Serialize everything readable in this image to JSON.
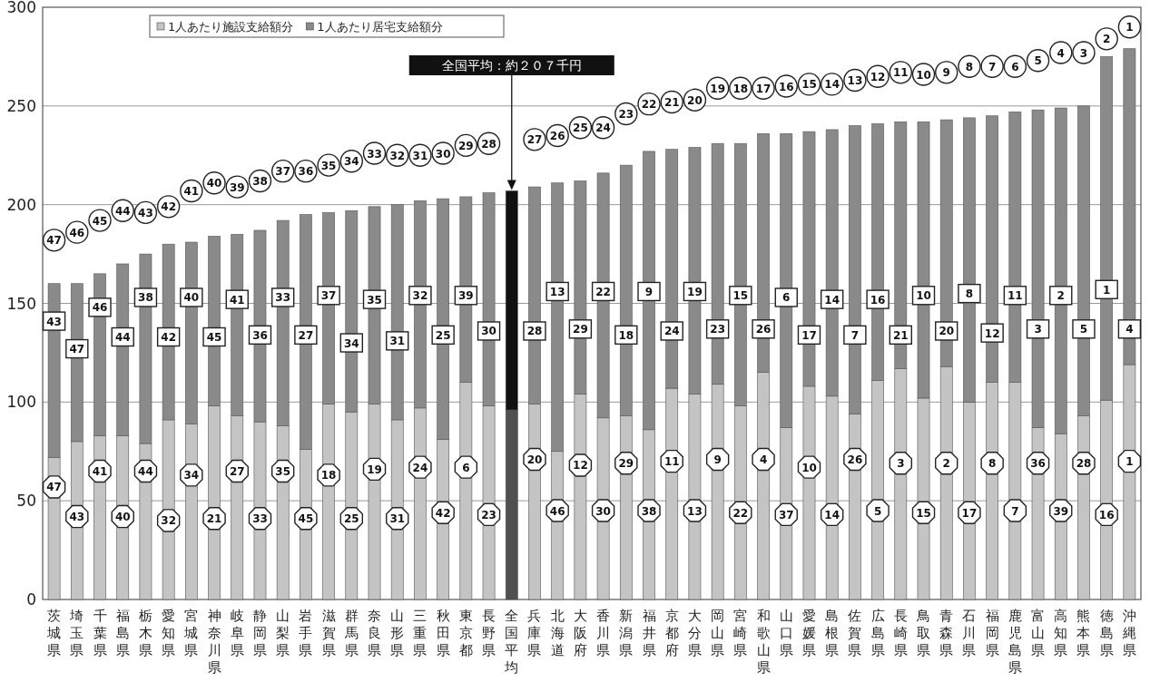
{
  "chart_data": {
    "type": "bar",
    "stacked": true,
    "categories": [
      "茨城県",
      "埼玉県",
      "千葉県",
      "福島県",
      "栃木県",
      "愛知県",
      "宮城県",
      "神奈川県",
      "岐阜県",
      "静岡県",
      "山梨県",
      "岩手県",
      "滋賀県",
      "群馬県",
      "奈良県",
      "山形県",
      "三重県",
      "秋田県",
      "東京都",
      "長野県",
      "全国平均",
      "兵庫県",
      "北海道",
      "大阪府",
      "香川県",
      "新潟県",
      "福井県",
      "京都府",
      "大分県",
      "岡山県",
      "宮崎県",
      "和歌山県",
      "山口県",
      "愛媛県",
      "島根県",
      "佐賀県",
      "広島県",
      "長崎県",
      "鳥取県",
      "青森県",
      "石川県",
      "福岡県",
      "鹿児島県",
      "富山県",
      "高知県",
      "熊本県",
      "徳島県",
      "沖縄県"
    ],
    "series": [
      {
        "name": "1人あたり施設支給額分",
        "color": "#c4c4c4",
        "colors": [
          "#c4c4c4",
          "#c4c4c4",
          "#c4c4c4",
          "#c4c4c4",
          "#c4c4c4",
          "#c4c4c4",
          "#c4c4c4",
          "#c4c4c4",
          "#c4c4c4",
          "#c4c4c4",
          "#c4c4c4",
          "#c4c4c4",
          "#c4c4c4",
          "#c4c4c4",
          "#c4c4c4",
          "#c4c4c4",
          "#c4c4c4",
          "#c4c4c4",
          "#c4c4c4",
          "#c4c4c4",
          "#505050",
          "#c4c4c4",
          "#c4c4c4",
          "#c4c4c4",
          "#c4c4c4",
          "#c4c4c4",
          "#c4c4c4",
          "#c4c4c4",
          "#c4c4c4",
          "#c4c4c4",
          "#c4c4c4",
          "#c4c4c4",
          "#c4c4c4",
          "#c4c4c4",
          "#c4c4c4",
          "#c4c4c4",
          "#c4c4c4",
          "#c4c4c4",
          "#c4c4c4",
          "#c4c4c4",
          "#c4c4c4",
          "#c4c4c4",
          "#c4c4c4",
          "#c4c4c4",
          "#c4c4c4",
          "#c4c4c4",
          "#c4c4c4",
          "#c4c4c4"
        ],
        "values": [
          72,
          80,
          83,
          83,
          79,
          91,
          89,
          98,
          93,
          90,
          88,
          76,
          99,
          95,
          99,
          91,
          97,
          81,
          110,
          98,
          96,
          99,
          75,
          104,
          92,
          93,
          86,
          107,
          104,
          109,
          98,
          115,
          87,
          108,
          103,
          94,
          111,
          117,
          102,
          118,
          100,
          110,
          110,
          87,
          84,
          93,
          101,
          119
        ]
      },
      {
        "name": "1人あたり居宅支給額分",
        "color": "#8a8a8a",
        "colors": [
          "#8a8a8a",
          "#8a8a8a",
          "#8a8a8a",
          "#8a8a8a",
          "#8a8a8a",
          "#8a8a8a",
          "#8a8a8a",
          "#8a8a8a",
          "#8a8a8a",
          "#8a8a8a",
          "#8a8a8a",
          "#8a8a8a",
          "#8a8a8a",
          "#8a8a8a",
          "#8a8a8a",
          "#8a8a8a",
          "#8a8a8a",
          "#8a8a8a",
          "#8a8a8a",
          "#8a8a8a",
          "#111111",
          "#8a8a8a",
          "#8a8a8a",
          "#8a8a8a",
          "#8a8a8a",
          "#8a8a8a",
          "#8a8a8a",
          "#8a8a8a",
          "#8a8a8a",
          "#8a8a8a",
          "#8a8a8a",
          "#8a8a8a",
          "#8a8a8a",
          "#8a8a8a",
          "#8a8a8a",
          "#8a8a8a",
          "#8a8a8a",
          "#8a8a8a",
          "#8a8a8a",
          "#8a8a8a",
          "#8a8a8a",
          "#8a8a8a",
          "#8a8a8a",
          "#8a8a8a",
          "#8a8a8a",
          "#8a8a8a",
          "#8a8a8a",
          "#8a8a8a"
        ],
        "values": [
          88,
          80,
          82,
          87,
          96,
          89,
          92,
          86,
          92,
          97,
          104,
          119,
          97,
          102,
          100,
          109,
          105,
          122,
          94,
          108,
          111,
          110,
          136,
          108,
          124,
          127,
          141,
          121,
          125,
          122,
          133,
          121,
          149,
          129,
          135,
          146,
          130,
          125,
          140,
          125,
          144,
          135,
          137,
          161,
          165,
          157,
          174,
          160
        ]
      }
    ],
    "ylim": [
      0,
      300
    ],
    "yticks": [
      0,
      50,
      100,
      150,
      200,
      250,
      300
    ],
    "grid": "y",
    "legend": "top left",
    "annotations": [
      {
        "text": "全国平均：約２０７千円",
        "x": "全国平均",
        "y": 207
      },
      {
        "text": "47",
        "x": "茨城県",
        "y": 182
      },
      {
        "text": "43",
        "x": "茨城県",
        "y": 141
      },
      {
        "text": "47",
        "x": "茨城県",
        "y": 57
      },
      {
        "text": "46",
        "x": "埼玉県",
        "y": 186
      },
      {
        "text": "47",
        "x": "埼玉県",
        "y": 127
      },
      {
        "text": "43",
        "x": "埼玉県",
        "y": 42
      },
      {
        "text": "45",
        "x": "千葉県",
        "y": 192
      },
      {
        "text": "46",
        "x": "千葉県",
        "y": 148
      },
      {
        "text": "41",
        "x": "千葉県",
        "y": 65
      },
      {
        "text": "44",
        "x": "福島県",
        "y": 197
      },
      {
        "text": "44",
        "x": "福島県",
        "y": 133
      },
      {
        "text": "40",
        "x": "福島県",
        "y": 42
      },
      {
        "text": "43",
        "x": "栃木県",
        "y": 196
      },
      {
        "text": "38",
        "x": "栃木県",
        "y": 153
      },
      {
        "text": "44",
        "x": "栃木県",
        "y": 65
      },
      {
        "text": "42",
        "x": "愛知県",
        "y": 199
      },
      {
        "text": "42",
        "x": "愛知県",
        "y": 133
      },
      {
        "text": "32",
        "x": "愛知県",
        "y": 40
      },
      {
        "text": "41",
        "x": "宮城県",
        "y": 207
      },
      {
        "text": "40",
        "x": "宮城県",
        "y": 153
      },
      {
        "text": "34",
        "x": "宮城県",
        "y": 63
      },
      {
        "text": "40",
        "x": "神奈川県",
        "y": 211
      },
      {
        "text": "45",
        "x": "神奈川県",
        "y": 133
      },
      {
        "text": "21",
        "x": "神奈川県",
        "y": 41
      },
      {
        "text": "39",
        "x": "岐阜県",
        "y": 209
      },
      {
        "text": "41",
        "x": "岐阜県",
        "y": 152
      },
      {
        "text": "27",
        "x": "岐阜県",
        "y": 65
      },
      {
        "text": "38",
        "x": "静岡県",
        "y": 212
      },
      {
        "text": "36",
        "x": "静岡県",
        "y": 134
      },
      {
        "text": "33",
        "x": "静岡県",
        "y": 41
      },
      {
        "text": "37",
        "x": "山梨県",
        "y": 217
      },
      {
        "text": "33",
        "x": "山梨県",
        "y": 153
      },
      {
        "text": "35",
        "x": "山梨県",
        "y": 65
      },
      {
        "text": "36",
        "x": "岩手県",
        "y": 217
      },
      {
        "text": "27",
        "x": "岩手県",
        "y": 134
      },
      {
        "text": "45",
        "x": "岩手県",
        "y": 41
      },
      {
        "text": "35",
        "x": "滋賀県",
        "y": 220
      },
      {
        "text": "37",
        "x": "滋賀県",
        "y": 154
      },
      {
        "text": "18",
        "x": "滋賀県",
        "y": 63
      },
      {
        "text": "34",
        "x": "群馬県",
        "y": 222
      },
      {
        "text": "34",
        "x": "群馬県",
        "y": 130
      },
      {
        "text": "25",
        "x": "群馬県",
        "y": 41
      },
      {
        "text": "33",
        "x": "奈良県",
        "y": 226
      },
      {
        "text": "35",
        "x": "奈良県",
        "y": 152
      },
      {
        "text": "19",
        "x": "奈良県",
        "y": 66
      },
      {
        "text": "32",
        "x": "山形県",
        "y": 225
      },
      {
        "text": "31",
        "x": "山形県",
        "y": 131
      },
      {
        "text": "31",
        "x": "山形県",
        "y": 41
      },
      {
        "text": "31",
        "x": "三重県",
        "y": 225
      },
      {
        "text": "32",
        "x": "三重県",
        "y": 154
      },
      {
        "text": "24",
        "x": "三重県",
        "y": 67
      },
      {
        "text": "30",
        "x": "秋田県",
        "y": 226
      },
      {
        "text": "25",
        "x": "秋田県",
        "y": 134
      },
      {
        "text": "42",
        "x": "秋田県",
        "y": 44
      },
      {
        "text": "29",
        "x": "東京都",
        "y": 230
      },
      {
        "text": "39",
        "x": "東京都",
        "y": 154
      },
      {
        "text": "6",
        "x": "東京都",
        "y": 67
      },
      {
        "text": "28",
        "x": "長野県",
        "y": 231
      },
      {
        "text": "30",
        "x": "長野県",
        "y": 136
      },
      {
        "text": "23",
        "x": "長野県",
        "y": 43
      },
      {
        "text": "27",
        "x": "兵庫県",
        "y": 233
      },
      {
        "text": "28",
        "x": "兵庫県",
        "y": 136
      },
      {
        "text": "20",
        "x": "兵庫県",
        "y": 71
      },
      {
        "text": "26",
        "x": "北海道",
        "y": 235
      },
      {
        "text": "13",
        "x": "北海道",
        "y": 156
      },
      {
        "text": "46",
        "x": "北海道",
        "y": 45
      },
      {
        "text": "25",
        "x": "大阪府",
        "y": 239
      },
      {
        "text": "29",
        "x": "大阪府",
        "y": 137
      },
      {
        "text": "12",
        "x": "大阪府",
        "y": 68
      },
      {
        "text": "24",
        "x": "香川県",
        "y": 239
      },
      {
        "text": "22",
        "x": "香川県",
        "y": 156
      },
      {
        "text": "30",
        "x": "香川県",
        "y": 45
      },
      {
        "text": "23",
        "x": "新潟県",
        "y": 246
      },
      {
        "text": "18",
        "x": "新潟県",
        "y": 134
      },
      {
        "text": "29",
        "x": "新潟県",
        "y": 69
      },
      {
        "text": "22",
        "x": "福井県",
        "y": 251
      },
      {
        "text": "9",
        "x": "福井県",
        "y": 156
      },
      {
        "text": "38",
        "x": "福井県",
        "y": 45
      },
      {
        "text": "21",
        "x": "京都府",
        "y": 252
      },
      {
        "text": "24",
        "x": "京都府",
        "y": 136
      },
      {
        "text": "11",
        "x": "京都府",
        "y": 70
      },
      {
        "text": "20",
        "x": "大分県",
        "y": 253
      },
      {
        "text": "19",
        "x": "大分県",
        "y": 156
      },
      {
        "text": "13",
        "x": "大分県",
        "y": 45
      },
      {
        "text": "19",
        "x": "岡山県",
        "y": 259
      },
      {
        "text": "23",
        "x": "岡山県",
        "y": 137
      },
      {
        "text": "9",
        "x": "岡山県",
        "y": 71
      },
      {
        "text": "18",
        "x": "宮崎県",
        "y": 259
      },
      {
        "text": "15",
        "x": "宮崎県",
        "y": 154
      },
      {
        "text": "22",
        "x": "宮崎県",
        "y": 44
      },
      {
        "text": "17",
        "x": "和歌山県",
        "y": 259
      },
      {
        "text": "26",
        "x": "和歌山県",
        "y": 137
      },
      {
        "text": "4",
        "x": "和歌山県",
        "y": 71
      },
      {
        "text": "16",
        "x": "山口県",
        "y": 260
      },
      {
        "text": "6",
        "x": "山口県",
        "y": 153
      },
      {
        "text": "37",
        "x": "山口県",
        "y": 43
      },
      {
        "text": "15",
        "x": "愛媛県",
        "y": 261
      },
      {
        "text": "17",
        "x": "愛媛県",
        "y": 134
      },
      {
        "text": "10",
        "x": "愛媛県",
        "y": 67
      },
      {
        "text": "14",
        "x": "島根県",
        "y": 261
      },
      {
        "text": "14",
        "x": "島根県",
        "y": 152
      },
      {
        "text": "14",
        "x": "島根県",
        "y": 43
      },
      {
        "text": "13",
        "x": "佐賀県",
        "y": 263
      },
      {
        "text": "7",
        "x": "佐賀県",
        "y": 134
      },
      {
        "text": "26",
        "x": "佐賀県",
        "y": 71
      },
      {
        "text": "12",
        "x": "広島県",
        "y": 265
      },
      {
        "text": "16",
        "x": "広島県",
        "y": 152
      },
      {
        "text": "5",
        "x": "広島県",
        "y": 45
      },
      {
        "text": "11",
        "x": "長崎県",
        "y": 267
      },
      {
        "text": "21",
        "x": "長崎県",
        "y": 134
      },
      {
        "text": "3",
        "x": "長崎県",
        "y": 69
      },
      {
        "text": "10",
        "x": "鳥取県",
        "y": 266
      },
      {
        "text": "10",
        "x": "鳥取県",
        "y": 154
      },
      {
        "text": "15",
        "x": "鳥取県",
        "y": 44
      },
      {
        "text": "9",
        "x": "青森県",
        "y": 267
      },
      {
        "text": "20",
        "x": "青森県",
        "y": 136
      },
      {
        "text": "2",
        "x": "青森県",
        "y": 69
      },
      {
        "text": "8",
        "x": "石川県",
        "y": 270
      },
      {
        "text": "8",
        "x": "石川県",
        "y": 155
      },
      {
        "text": "17",
        "x": "石川県",
        "y": 44
      },
      {
        "text": "7",
        "x": "福岡県",
        "y": 270
      },
      {
        "text": "12",
        "x": "福岡県",
        "y": 135
      },
      {
        "text": "8",
        "x": "福岡県",
        "y": 69
      },
      {
        "text": "6",
        "x": "鹿児島県",
        "y": 270
      },
      {
        "text": "11",
        "x": "鹿児島県",
        "y": 154
      },
      {
        "text": "7",
        "x": "鹿児島県",
        "y": 45
      },
      {
        "text": "5",
        "x": "富山県",
        "y": 273
      },
      {
        "text": "3",
        "x": "富山県",
        "y": 137
      },
      {
        "text": "36",
        "x": "富山県",
        "y": 69
      },
      {
        "text": "4",
        "x": "高知県",
        "y": 277
      },
      {
        "text": "2",
        "x": "高知県",
        "y": 154
      },
      {
        "text": "39",
        "x": "高知県",
        "y": 45
      },
      {
        "text": "3",
        "x": "熊本県",
        "y": 277
      },
      {
        "text": "5",
        "x": "熊本県",
        "y": 137
      },
      {
        "text": "28",
        "x": "熊本県",
        "y": 69
      },
      {
        "text": "2",
        "x": "徳島県",
        "y": 284
      },
      {
        "text": "1",
        "x": "徳島県",
        "y": 157
      },
      {
        "text": "16",
        "x": "徳島県",
        "y": 43
      },
      {
        "text": "1",
        "x": "沖縄県",
        "y": 290
      },
      {
        "text": "4",
        "x": "沖縄県",
        "y": 137
      },
      {
        "text": "1",
        "x": "沖縄県",
        "y": 70
      }
    ]
  }
}
